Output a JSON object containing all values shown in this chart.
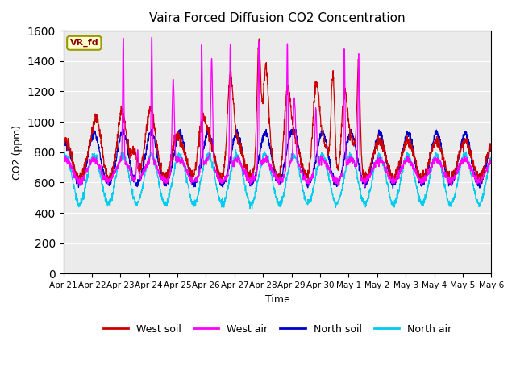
{
  "title": "Vaira Forced Diffusion CO2 Concentration",
  "xlabel": "Time",
  "ylabel": "CO2 (ppm)",
  "ylim": [
    0,
    1600
  ],
  "yticks": [
    0,
    200,
    400,
    600,
    800,
    1000,
    1200,
    1400,
    1600
  ],
  "annotation": "VR_fd",
  "bg_color": "#ebebeb",
  "line_colors": {
    "west_soil": "#cc0000",
    "west_air": "#ff00ff",
    "north_soil": "#0000cc",
    "north_air": "#00ccee"
  },
  "legend_labels": [
    "West soil",
    "West air",
    "North soil",
    "North air"
  ],
  "x_tick_labels": [
    "Apr 21",
    "Apr 22",
    "Apr 23",
    "Apr 24",
    "Apr 25",
    "Apr 26",
    "Apr 27",
    "Apr 28",
    "Apr 29",
    "Apr 30",
    "May 1",
    "May 2",
    "May 3",
    "May 4",
    "May 5",
    "May 6"
  ],
  "num_days": 15,
  "points_per_day": 144
}
